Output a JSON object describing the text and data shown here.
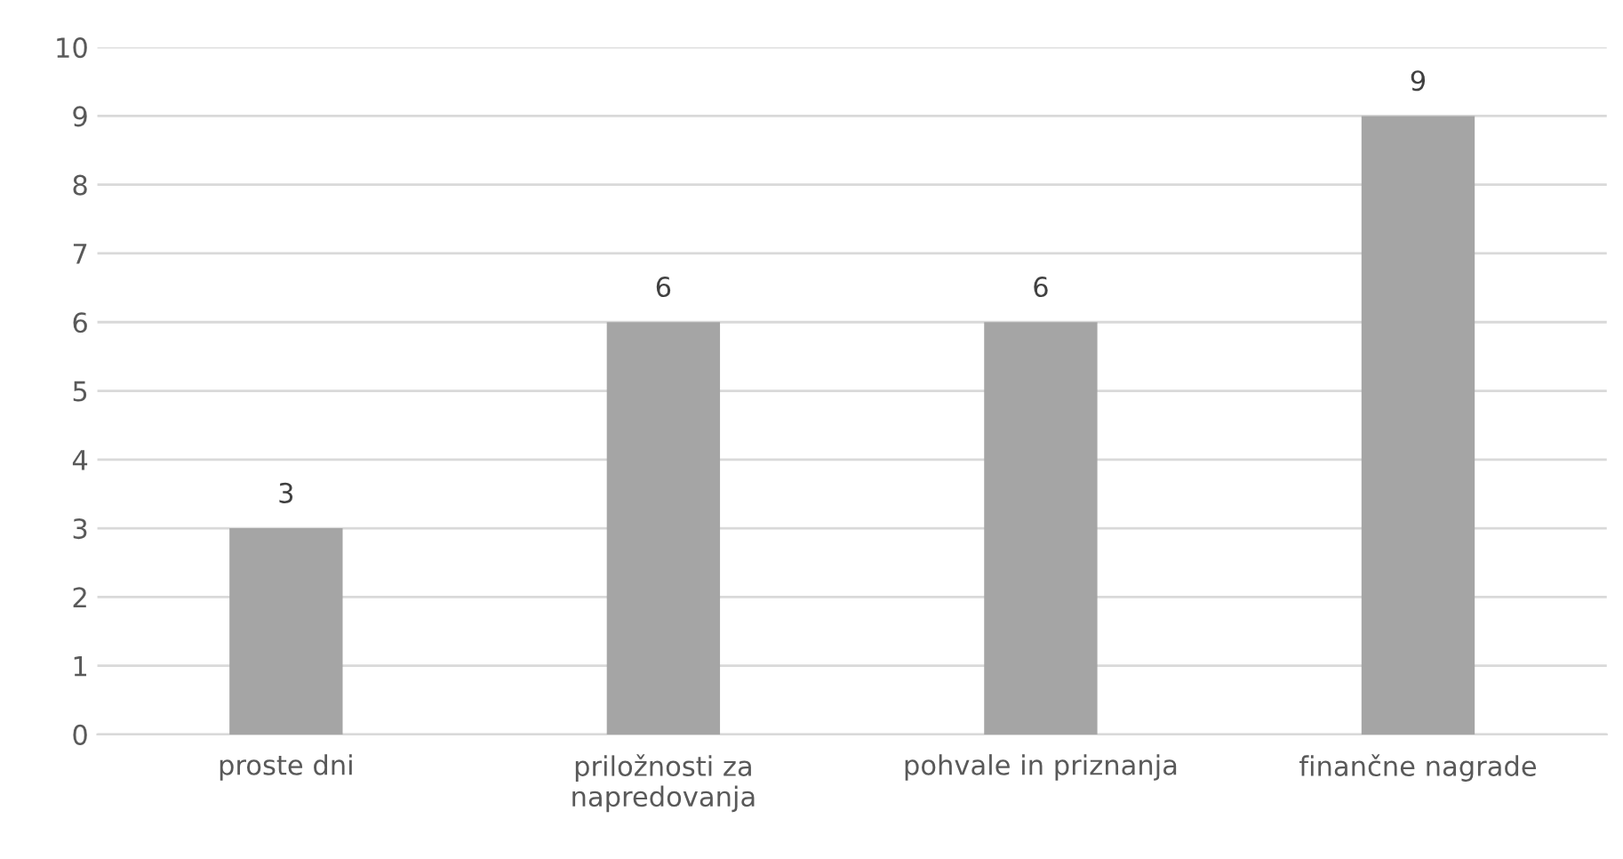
{
  "chart_data": {
    "type": "bar",
    "categories": [
      "proste dni",
      "priložnosti za\nnapredovanja",
      "pohvale in priznanja",
      "finančne nagrade"
    ],
    "values": [
      3,
      6,
      6,
      9
    ],
    "color": "#a5a5a5",
    "ylim": [
      0,
      10
    ],
    "yticks": [
      0,
      1,
      2,
      3,
      4,
      5,
      6,
      7,
      8,
      9,
      10
    ],
    "grid": "y",
    "data_labels": true
  }
}
